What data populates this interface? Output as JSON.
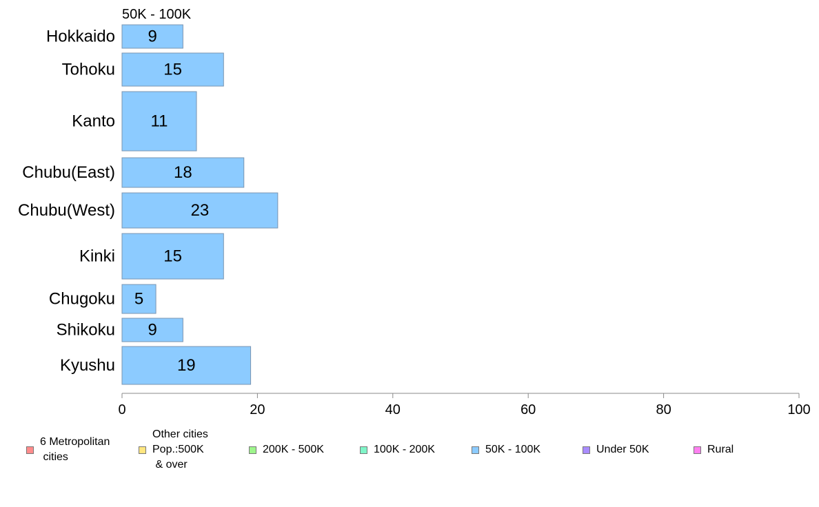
{
  "chart_data": {
    "type": "bar",
    "orientation": "horizontal",
    "title": "50K - 100K",
    "categories": [
      "Hokkaido",
      "Tohoku",
      "Kanto",
      "Chubu(East)",
      "Chubu(West)",
      "Kinki",
      "Chugoku",
      "Shikoku",
      "Kyushu"
    ],
    "series": [
      {
        "name": "50K - 100K",
        "values": [
          9,
          15,
          11,
          18,
          23,
          15,
          5,
          9,
          19
        ],
        "color": "#8ccbff"
      }
    ],
    "xlim": [
      0,
      100
    ],
    "xticks": [
      "0",
      "20",
      "40",
      "60",
      "80",
      "100"
    ],
    "grid": false,
    "legend_position": "bottom"
  },
  "legend": {
    "items": [
      {
        "label": "6 Metropolitan\n cities",
        "color": "#ff8c8c"
      },
      {
        "label": "Other cities\nPop.:500K\n & over",
        "color": "#ffe680"
      },
      {
        "label": "200K - 500K",
        "color": "#9ef58c"
      },
      {
        "label": "100K - 200K",
        "color": "#80f5c8"
      },
      {
        "label": "50K - 100K",
        "color": "#8ccbff"
      },
      {
        "label": "Under 50K",
        "color": "#a98cff"
      },
      {
        "label": "Rural",
        "color": "#ff80f0"
      }
    ]
  }
}
